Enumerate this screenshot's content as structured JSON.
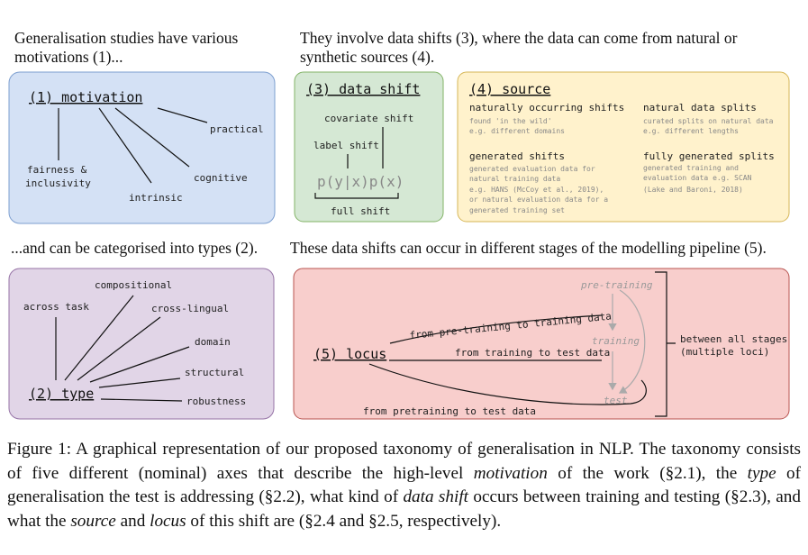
{
  "intro": {
    "motivation": [
      "Generalisation studies have various",
      "motivations (1)..."
    ],
    "shift": [
      "They involve data shifts (3), where the data can come from natural or",
      "synthetic sources (4)."
    ],
    "type": "...and can be categorised into types (2).",
    "locus": "These data shifts can occur in different stages of the modelling pipeline (5)."
  },
  "motivation": {
    "title": "(1) motivation",
    "items": [
      "practical",
      [
        "fairness &",
        "inclusivity"
      ],
      "cognitive",
      "intrinsic"
    ]
  },
  "data_shift": {
    "title": "(3) data shift",
    "covariate": "covariate shift",
    "label": "label shift",
    "formula": "p(y|x)p(x)",
    "full": "full shift"
  },
  "source": {
    "title": "(4) source",
    "cells": [
      {
        "heading": "naturally occurring shifts",
        "details": [
          "found 'in the wild'",
          "e.g. different domains"
        ]
      },
      {
        "heading": "natural data splits",
        "details": [
          "curated splits on natural data",
          "e.g. different lengths"
        ]
      },
      {
        "heading": "generated shifts",
        "details": [
          "generated evaluation data for",
          "natural training data",
          "e.g. HANS (McCoy et al., 2019),",
          "or natural evaluation data for a",
          "generated training set"
        ]
      },
      {
        "heading": "fully generated splits",
        "details": [
          "generated training and",
          "evaluation data e.g. SCAN",
          "(Lake and Baroni, 2018)"
        ]
      }
    ]
  },
  "type": {
    "title": "(2) type",
    "items": [
      "compositional",
      "across task",
      "cross-lingual",
      "domain",
      "structural",
      "robustness"
    ]
  },
  "locus": {
    "title": "(5) locus",
    "stages": [
      "pre-training",
      "training",
      "test"
    ],
    "transitions": [
      "from pre-training to training data",
      "from training to test data",
      "from pretraining to test data"
    ],
    "summary": [
      "between all stages",
      "(multiple loci)"
    ]
  },
  "caption": [
    "Figure 1: A graphical representation of our proposed taxonomy of generalisation in NLP. The taxonomy consists of five different (nominal) axes that describe the high-level ",
    "motivation",
    " of the work (§2.1), the ",
    "type",
    " of generalisation the test is addressing (§2.2), what kind of ",
    "data shift",
    " occurs between training and testing (§2.3), and what the ",
    "source",
    " and ",
    "locus",
    " of this shift are (§2.4 and §2.5, respectively)."
  ]
}
